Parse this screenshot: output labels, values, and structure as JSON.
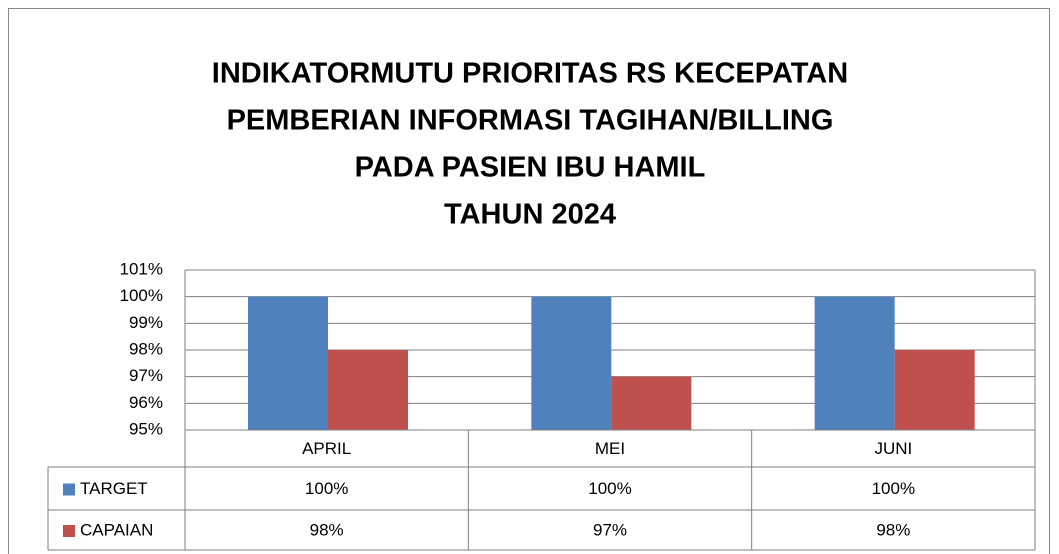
{
  "chart_data": {
    "type": "bar",
    "title": [
      "INDIKATORMUTU PRIORITAS RS KECEPATAN",
      "PEMBERIAN INFORMASI TAGIHAN/BILLING",
      "PADA PASIEN IBU HAMIL",
      "TAHUN 2024"
    ],
    "categories": [
      "APRIL",
      "MEI",
      "JUNI"
    ],
    "series": [
      {
        "name": "TARGET",
        "color": "#4f81bd",
        "values": [
          100,
          100,
          100
        ],
        "value_labels": [
          "100%",
          "100%",
          "100%"
        ]
      },
      {
        "name": "CAPAIAN",
        "color": "#c0504d",
        "values": [
          98,
          97,
          98
        ],
        "value_labels": [
          "98%",
          "97%",
          "98%"
        ]
      }
    ],
    "ylim": [
      95,
      101
    ],
    "yticks": [
      {
        "value": 95,
        "label": "95%"
      },
      {
        "value": 96,
        "label": "96%"
      },
      {
        "value": 97,
        "label": "97%"
      },
      {
        "value": 98,
        "label": "98%"
      },
      {
        "value": 99,
        "label": "99%"
      },
      {
        "value": 100,
        "label": "100%"
      },
      {
        "value": 101,
        "label": "101%"
      }
    ],
    "grid": true,
    "data_table": true
  }
}
